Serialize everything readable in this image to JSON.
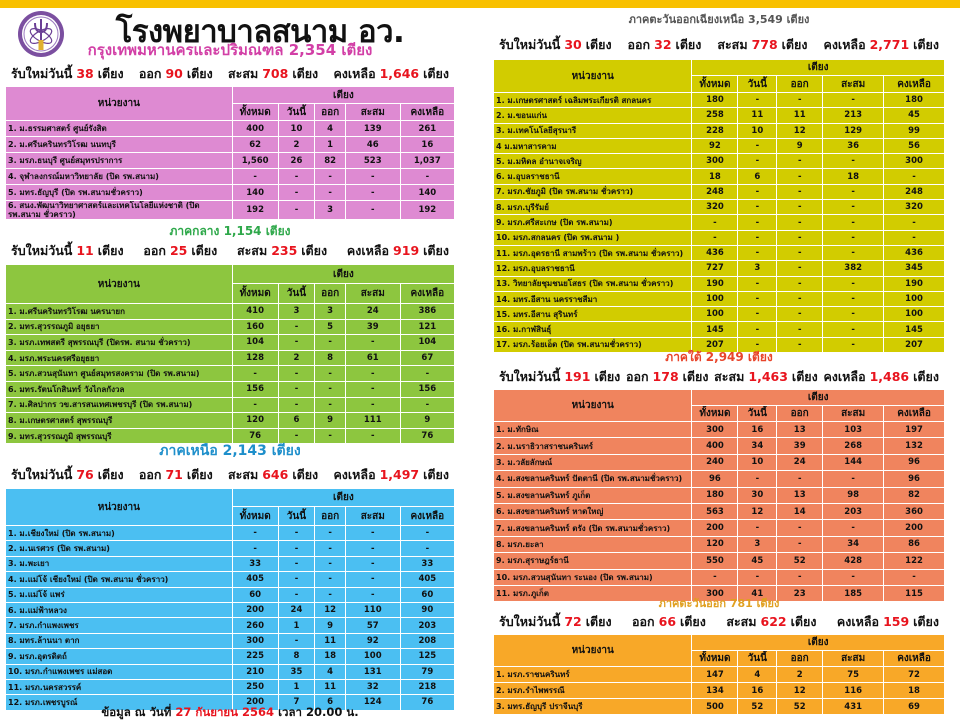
{
  "header": {
    "title": "โรงพยาบาลสนาม อว.",
    "logo_icon": "ministry-emblem-logo",
    "accent_color": "#F8C000"
  },
  "labels": {
    "new_today": "รับใหม่วันนี้",
    "beds": "เตียง",
    "out": "ออก",
    "cum": "สะสม",
    "remain": "คงเหลือ"
  },
  "table_headers": {
    "unit": "หน่วยงาน",
    "beds": "เตียง",
    "cols": [
      "ทั้งหมด",
      "วันนี้",
      "ออก",
      "สะสม",
      "คงเหลือ"
    ]
  },
  "sections": {
    "bangkok": {
      "title": "กรุงเทพมหานครและปริมณฑล  2,354 เตียง",
      "color": "#DE8AD2",
      "title_color": "#D23FA6",
      "summary": {
        "new": "38",
        "out": "90",
        "cum": "708",
        "remain": "1,646"
      },
      "rows": [
        [
          "1. ม.ธรรมศาสตร์ ศูนย์รังสิต",
          "400",
          "10",
          "4",
          "139",
          "261"
        ],
        [
          "2. ม.ศรีนครินทรวิโรฒ นนทบุรี",
          "62",
          "2",
          "1",
          "46",
          "16"
        ],
        [
          "3. มรภ.ธนบุรี ศูนย์สมุทรปราการ",
          "1,560",
          "26",
          "82",
          "523",
          "1,037"
        ],
        [
          "4. จุฬาลงกรณ์มหาวิทยาลัย  (ปิด รพ.สนาม)",
          "-",
          "-",
          "-",
          "-",
          "-"
        ],
        [
          "5. มทร.ธัญบุรี (ปิด รพ.สนามชั่วคราว)",
          "140",
          "-",
          "-",
          "-",
          "140"
        ],
        [
          "6. สนง.พัฒนาวิทยาศาสตร์และเทคโนโลยีแห่งชาติ (ปิด รพ.สนาม ชั่วคราว)",
          "192",
          "-",
          "3",
          "-",
          "192"
        ]
      ]
    },
    "central": {
      "title": "ภาคกลาง  1,154 เตียง",
      "color": "#8DC63F",
      "title_color": "#2EA84A",
      "summary": {
        "new": "11",
        "out": "25",
        "cum": "235",
        "remain": "919"
      },
      "rows": [
        [
          "1. ม.ศรีนครินทรวิโรฒ  นครนายก",
          "410",
          "3",
          "3",
          "24",
          "386"
        ],
        [
          "2. มทร.สุวรรณภูมิ อยุธยา",
          "160",
          "-",
          "5",
          "39",
          "121"
        ],
        [
          "3. มรภ.เทพสตรี สุพรรณบุรี (ปิดรพ. สนาม ชั่วคราว)",
          "104",
          "-",
          "-",
          "-",
          "104"
        ],
        [
          "4. มรภ.พระนครศรีอยุธยา",
          "128",
          "2",
          "8",
          "61",
          "67"
        ],
        [
          "5. มรภ.สวนสุนันทา ศูนย์สมุทรสงคราม  (ปิด รพ.สนาม)",
          "-",
          "-",
          "-",
          "-",
          "-"
        ],
        [
          "6. มทร.รัตนโกสินทร์  วังไกลกังวล",
          "156",
          "-",
          "-",
          "-",
          "156"
        ],
        [
          "7. ม.ศิลปากร วข.สารสนเทศเพชรบุรี  (ปิด รพ.สนาม)",
          "-",
          "-",
          "-",
          "-",
          "-"
        ],
        [
          "8. ม.เกษตรศาสตร์  สุพรรณบุรี",
          "120",
          "6",
          "9",
          "111",
          "9"
        ],
        [
          "9. มทร.สุวรรณภูมิ  สุพรรณบุรี",
          "76",
          "-",
          "-",
          "-",
          "76"
        ]
      ]
    },
    "north": {
      "title": "ภาคเหนือ  2,143 เตียง",
      "color": "#4BBFF2",
      "title_color": "#1E8FCB",
      "summary": {
        "new": "76",
        "out": "71",
        "cum": "646",
        "remain": "1,497"
      },
      "rows": [
        [
          "1. ม.เชียงใหม่  (ปิด รพ.สนาม)",
          "-",
          "-",
          "-",
          "-",
          "-"
        ],
        [
          "2. ม.นเรศวร (ปิด รพ.สนาม)",
          "-",
          "-",
          "-",
          "-",
          "-"
        ],
        [
          "3. ม.พะเยา",
          "33",
          "-",
          "-",
          "-",
          "33"
        ],
        [
          "4. ม.แม่โจ้ เชียงใหม่ (ปิด รพ.สนาม ชั่วคราว)",
          "405",
          "-",
          "-",
          "-",
          "405"
        ],
        [
          "5. ม.แม่โจ้ แพร่",
          "60",
          "-",
          "-",
          "-",
          "60"
        ],
        [
          "6. ม.แม่ฟ้าหลวง",
          "200",
          "24",
          "12",
          "110",
          "90"
        ],
        [
          "7. มรภ.กำแพงเพชร",
          "260",
          "1",
          "9",
          "57",
          "203"
        ],
        [
          "8. มทร.ล้านนา ตาก",
          "300",
          "-",
          "11",
          "92",
          "208"
        ],
        [
          "9. มรภ.อุตรดิตถ์",
          "225",
          "8",
          "18",
          "100",
          "125"
        ],
        [
          "10. มรภ.กำแพงเพชร แม่สอด",
          "210",
          "35",
          "4",
          "131",
          "79"
        ],
        [
          "11. มรภ.นครสวรรค์",
          "250",
          "1",
          "11",
          "32",
          "218"
        ],
        [
          "12. มรภ.เพชรบูรณ์",
          "200",
          "7",
          "6",
          "124",
          "76"
        ]
      ]
    },
    "northeast": {
      "title": "ภาคตะวันออกเฉียงเหนือ  3,549 เตียง",
      "color": "#D2CC00",
      "title_color": "#555555",
      "summary": {
        "new": "30",
        "out": "32",
        "cum": "778",
        "remain": "2,771"
      },
      "rows": [
        [
          "1. ม.เกษตรศาสตร์ เฉลิมพระเกียรติ สกลนคร",
          "180",
          "-",
          "-",
          "-",
          "180"
        ],
        [
          "2. ม.ขอนแก่น",
          "258",
          "11",
          "11",
          "213",
          "45"
        ],
        [
          "3. ม.เทคโนโลยีสุรนารี",
          "228",
          "10",
          "12",
          "129",
          "99"
        ],
        [
          "4 ม.มหาสารคาม",
          "92",
          "-",
          "9",
          "36",
          "56"
        ],
        [
          "5. ม.มหิดล  อำนาจเจริญ",
          "300",
          "-",
          "-",
          "-",
          "300"
        ],
        [
          "6. ม.อุบลราชธานี",
          "18",
          "6",
          "-",
          "18",
          "-"
        ],
        [
          "7. มรภ.ชัยภูมิ   (ปิด รพ.สนาม  ชั่วคราว)",
          "248",
          "-",
          "-",
          "-",
          "248"
        ],
        [
          "8. มรภ.บุรีรัมย์",
          "320",
          "-",
          "-",
          "-",
          "320"
        ],
        [
          "9. มรภ.ศรีสะเกษ   (ปิด รพ.สนาม)",
          "-",
          "-",
          "-",
          "-",
          "-"
        ],
        [
          "10. มรภ.สกลนคร   (ปิด รพ.สนาม )",
          "-",
          "-",
          "-",
          "-",
          "-"
        ],
        [
          "11. มรภ.อุดรธานี  สามพร้าว (ปิด รพ.สนาม ชั่วคราว)",
          "436",
          "-",
          "-",
          "-",
          "436"
        ],
        [
          "12. มรภ.อุบลราชธานี",
          "727",
          "3",
          "-",
          "382",
          "345"
        ],
        [
          "13. วิทยาลัยชุมชนยโสธร  (ปิด รพ.สนาม ชั่วคราว)",
          "190",
          "-",
          "-",
          "-",
          "190"
        ],
        [
          "14. มทร.อีสาน  นครราชสีมา",
          "100",
          "-",
          "-",
          "-",
          "100"
        ],
        [
          "15. มทร.อีสาน  สุรินทร์",
          "100",
          "-",
          "-",
          "-",
          "100"
        ],
        [
          "16. ม.กาฬสินธุ์",
          "145",
          "-",
          "-",
          "-",
          "145"
        ],
        [
          "17. มรภ.ร้อยเอ็ด  (ปิด รพ.สนามชั่วคราว)",
          "207",
          "-",
          "-",
          "-",
          "207"
        ]
      ]
    },
    "south": {
      "title": "ภาคใต้  2,949 เตียง",
      "color": "#F0845E",
      "title_color": "#E8442A",
      "summary": {
        "new": "191",
        "out": "178",
        "cum": "1,463",
        "remain": "1,486"
      },
      "rows": [
        [
          "1. ม.ทักษิณ",
          "300",
          "16",
          "13",
          "103",
          "197"
        ],
        [
          "2. ม.นราธิวาสราชนครินทร์",
          "400",
          "34",
          "39",
          "268",
          "132"
        ],
        [
          "3. ม.วลัยลักษณ์",
          "240",
          "10",
          "24",
          "144",
          "96"
        ],
        [
          "4. ม.สงขลานครินทร์ ปัตตานี  (ปิด รพ.สนามชั่วคราว)",
          "96",
          "-",
          "-",
          "-",
          "96"
        ],
        [
          "5. ม.สงขลานครินทร์ ภูเก็ต",
          "180",
          "30",
          "13",
          "98",
          "82"
        ],
        [
          "6. ม.สงขลานครินทร์ หาดใหญ่",
          "563",
          "12",
          "14",
          "203",
          "360"
        ],
        [
          "7. ม.สงขลานครินทร์ ตรัง  (ปิด รพ.สนามชั่วคราว)",
          "200",
          "-",
          "-",
          "-",
          "200"
        ],
        [
          "8. มรภ.ยะลา",
          "120",
          "3",
          "-",
          "34",
          "86"
        ],
        [
          "9. มรภ.สุราษฎร์ธานี",
          "550",
          "45",
          "52",
          "428",
          "122"
        ],
        [
          "10. มรภ.สวนสุนันทา ระนอง (ปิด รพ.สนาม)",
          "-",
          "-",
          "-",
          "-",
          "-"
        ],
        [
          "11. มรภ.ภูเก็ต",
          "300",
          "41",
          "23",
          "185",
          "115"
        ]
      ]
    },
    "east": {
      "title": "ภาคตะวันออก  781  เตียง",
      "color": "#F8A828",
      "title_color": "#E0A020",
      "summary": {
        "new": "72",
        "out": "66",
        "cum": "622",
        "remain": "159"
      },
      "rows": [
        [
          "1. มรภ.ราชนครินทร์",
          "147",
          "4",
          "2",
          "75",
          "72"
        ],
        [
          "2. มรภ.รำไพพรรณี",
          "134",
          "16",
          "12",
          "116",
          "18"
        ],
        [
          "3. มทร.ธัญบุรี  ปราจีนบุรี",
          "500",
          "52",
          "52",
          "431",
          "69"
        ]
      ]
    }
  },
  "footer": {
    "prefix": "ข้อมูล ณ วันที่",
    "date": "27 กันยายน 2564",
    "suffix": "เวลา 20.00 น."
  }
}
